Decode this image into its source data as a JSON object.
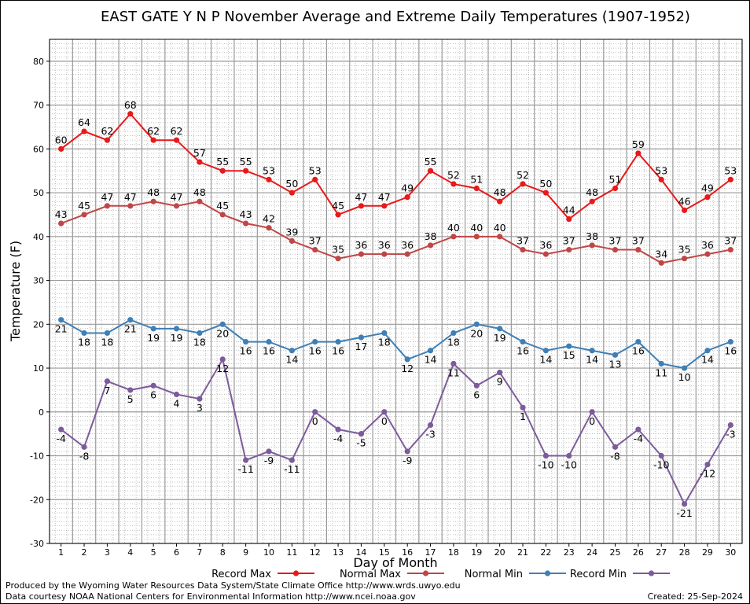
{
  "chart_data": {
    "type": "line",
    "title": "EAST GATE Y N P November Average and Extreme Daily Temperatures (1907-1952)",
    "xlabel": "Day of Month",
    "ylabel": "Temperature (F)",
    "ylim": [
      -30,
      85
    ],
    "yticks": [
      -30,
      -20,
      -10,
      0,
      10,
      20,
      30,
      40,
      50,
      60,
      70,
      80
    ],
    "x": [
      1,
      2,
      3,
      4,
      5,
      6,
      7,
      8,
      9,
      10,
      11,
      12,
      13,
      14,
      15,
      16,
      17,
      18,
      19,
      20,
      21,
      22,
      23,
      24,
      25,
      26,
      27,
      28,
      29,
      30
    ],
    "grid": true,
    "legend_position": "bottom",
    "series": [
      {
        "name": "Record Max",
        "color": "#e8191a",
        "values": [
          60,
          64,
          62,
          68,
          62,
          62,
          57,
          55,
          55,
          53,
          50,
          53,
          45,
          47,
          47,
          49,
          55,
          52,
          51,
          48,
          52,
          50,
          44,
          48,
          51,
          59,
          53,
          46,
          49,
          53
        ]
      },
      {
        "name": "Normal Max",
        "color": "#c04646",
        "values": [
          43,
          45,
          47,
          47,
          48,
          47,
          48,
          45,
          43,
          42,
          39,
          37,
          35,
          36,
          36,
          36,
          38,
          40,
          40,
          40,
          37,
          36,
          37,
          38,
          37,
          37,
          34,
          35,
          36,
          37
        ]
      },
      {
        "name": "Normal Min",
        "color": "#3f7fb5",
        "values": [
          21,
          18,
          18,
          21,
          19,
          19,
          18,
          20,
          16,
          16,
          14,
          16,
          16,
          17,
          18,
          12,
          14,
          18,
          20,
          19,
          16,
          14,
          15,
          14,
          13,
          16,
          11,
          10,
          14,
          16
        ]
      },
      {
        "name": "Record Min",
        "color": "#7d5b9b",
        "values": [
          -4,
          -8,
          7,
          5,
          6,
          4,
          3,
          12,
          -11,
          -9,
          -11,
          0,
          -4,
          -5,
          0,
          -9,
          -3,
          11,
          6,
          9,
          1,
          -10,
          -10,
          0,
          -8,
          -4,
          -10,
          -21,
          -12,
          -3
        ]
      }
    ]
  },
  "footer": {
    "produced_by": "Produced by the Wyoming Water Resources Data System/State Climate Office http://www.wrds.uwyo.edu",
    "courtesy": "Data courtesy NOAA National Centers for Environmental Information http://www.ncei.noaa.gov",
    "created": "Created:  25-Sep-2024"
  }
}
